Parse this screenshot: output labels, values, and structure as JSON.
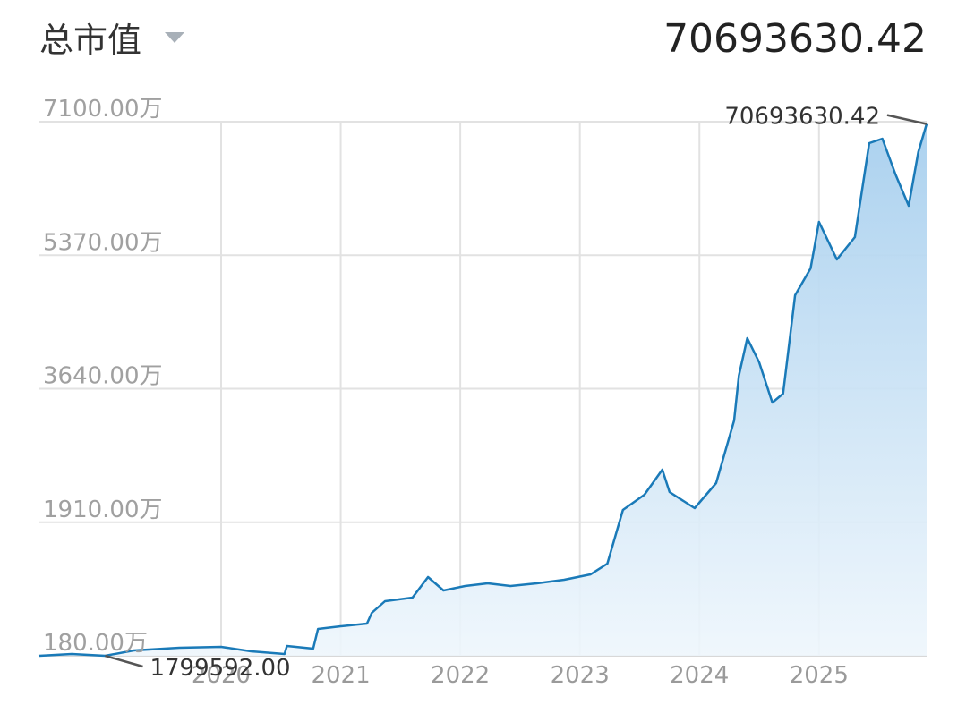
{
  "header": {
    "title": "总市值",
    "value": "70693630.42"
  },
  "chart_data": {
    "type": "line",
    "color": "#1a7ab8",
    "grid": true,
    "x": [
      2018.48,
      2018.75,
      2019.03,
      2019.27,
      2019.65,
      2020.0,
      2020.25,
      2020.53,
      2020.55,
      2020.77,
      2020.81,
      2021.0,
      2021.22,
      2021.26,
      2021.37,
      2021.6,
      2021.73,
      2021.86,
      2022.04,
      2022.23,
      2022.42,
      2022.64,
      2022.87,
      2023.09,
      2023.23,
      2023.36,
      2023.54,
      2023.69,
      2023.75,
      2023.96,
      2024.14,
      2024.29,
      2024.33,
      2024.4,
      2024.5,
      2024.61,
      2024.7,
      2024.8,
      2024.93,
      2025.0,
      2025.15,
      2025.3,
      2025.42,
      2025.53,
      2025.64,
      2025.75,
      2025.83,
      2025.9
    ],
    "values": [
      1800000,
      2030000,
      1799592,
      2500000,
      2840000,
      2960000,
      2380000,
      2030000,
      3080000,
      2730000,
      5280000,
      5630000,
      5970000,
      7360000,
      8870000,
      9330000,
      12000000,
      10260000,
      10840000,
      11190000,
      10840000,
      11190000,
      11650000,
      12350000,
      13740000,
      20690000,
      22660000,
      25910000,
      23010000,
      20930000,
      24170000,
      32280000,
      38080000,
      42950000,
      39820000,
      34600000,
      35760000,
      48510000,
      51990000,
      58020000,
      53150000,
      56050000,
      68220000,
      68800000,
      64160000,
      60100000,
      67060000,
      70693630.42
    ],
    "value_labels": [
      null,
      null,
      "1799592.00",
      null,
      null,
      null,
      null,
      null,
      null,
      null,
      null,
      null,
      null,
      null,
      null,
      null,
      null,
      null,
      null,
      null,
      null,
      null,
      null,
      null,
      null,
      null,
      null,
      null,
      null,
      null,
      null,
      null,
      null,
      null,
      null,
      null,
      null,
      null,
      null,
      null,
      null,
      null,
      null,
      null,
      null,
      null,
      null,
      "70693630.42"
    ],
    "xlim": [
      2018.48,
      2025.9
    ],
    "xticks": [
      2020,
      2021,
      2022,
      2023,
      2024,
      2025
    ],
    "ylim": [
      1800000,
      71000000
    ],
    "yticks": [
      {
        "value": 1800000,
        "label": "180.00万"
      },
      {
        "value": 19100000,
        "label": "1910.00万"
      },
      {
        "value": 36400000,
        "label": "3640.00万"
      },
      {
        "value": 53700000,
        "label": "5370.00万"
      },
      {
        "value": 71000000,
        "label": "7100.00万"
      }
    ]
  }
}
